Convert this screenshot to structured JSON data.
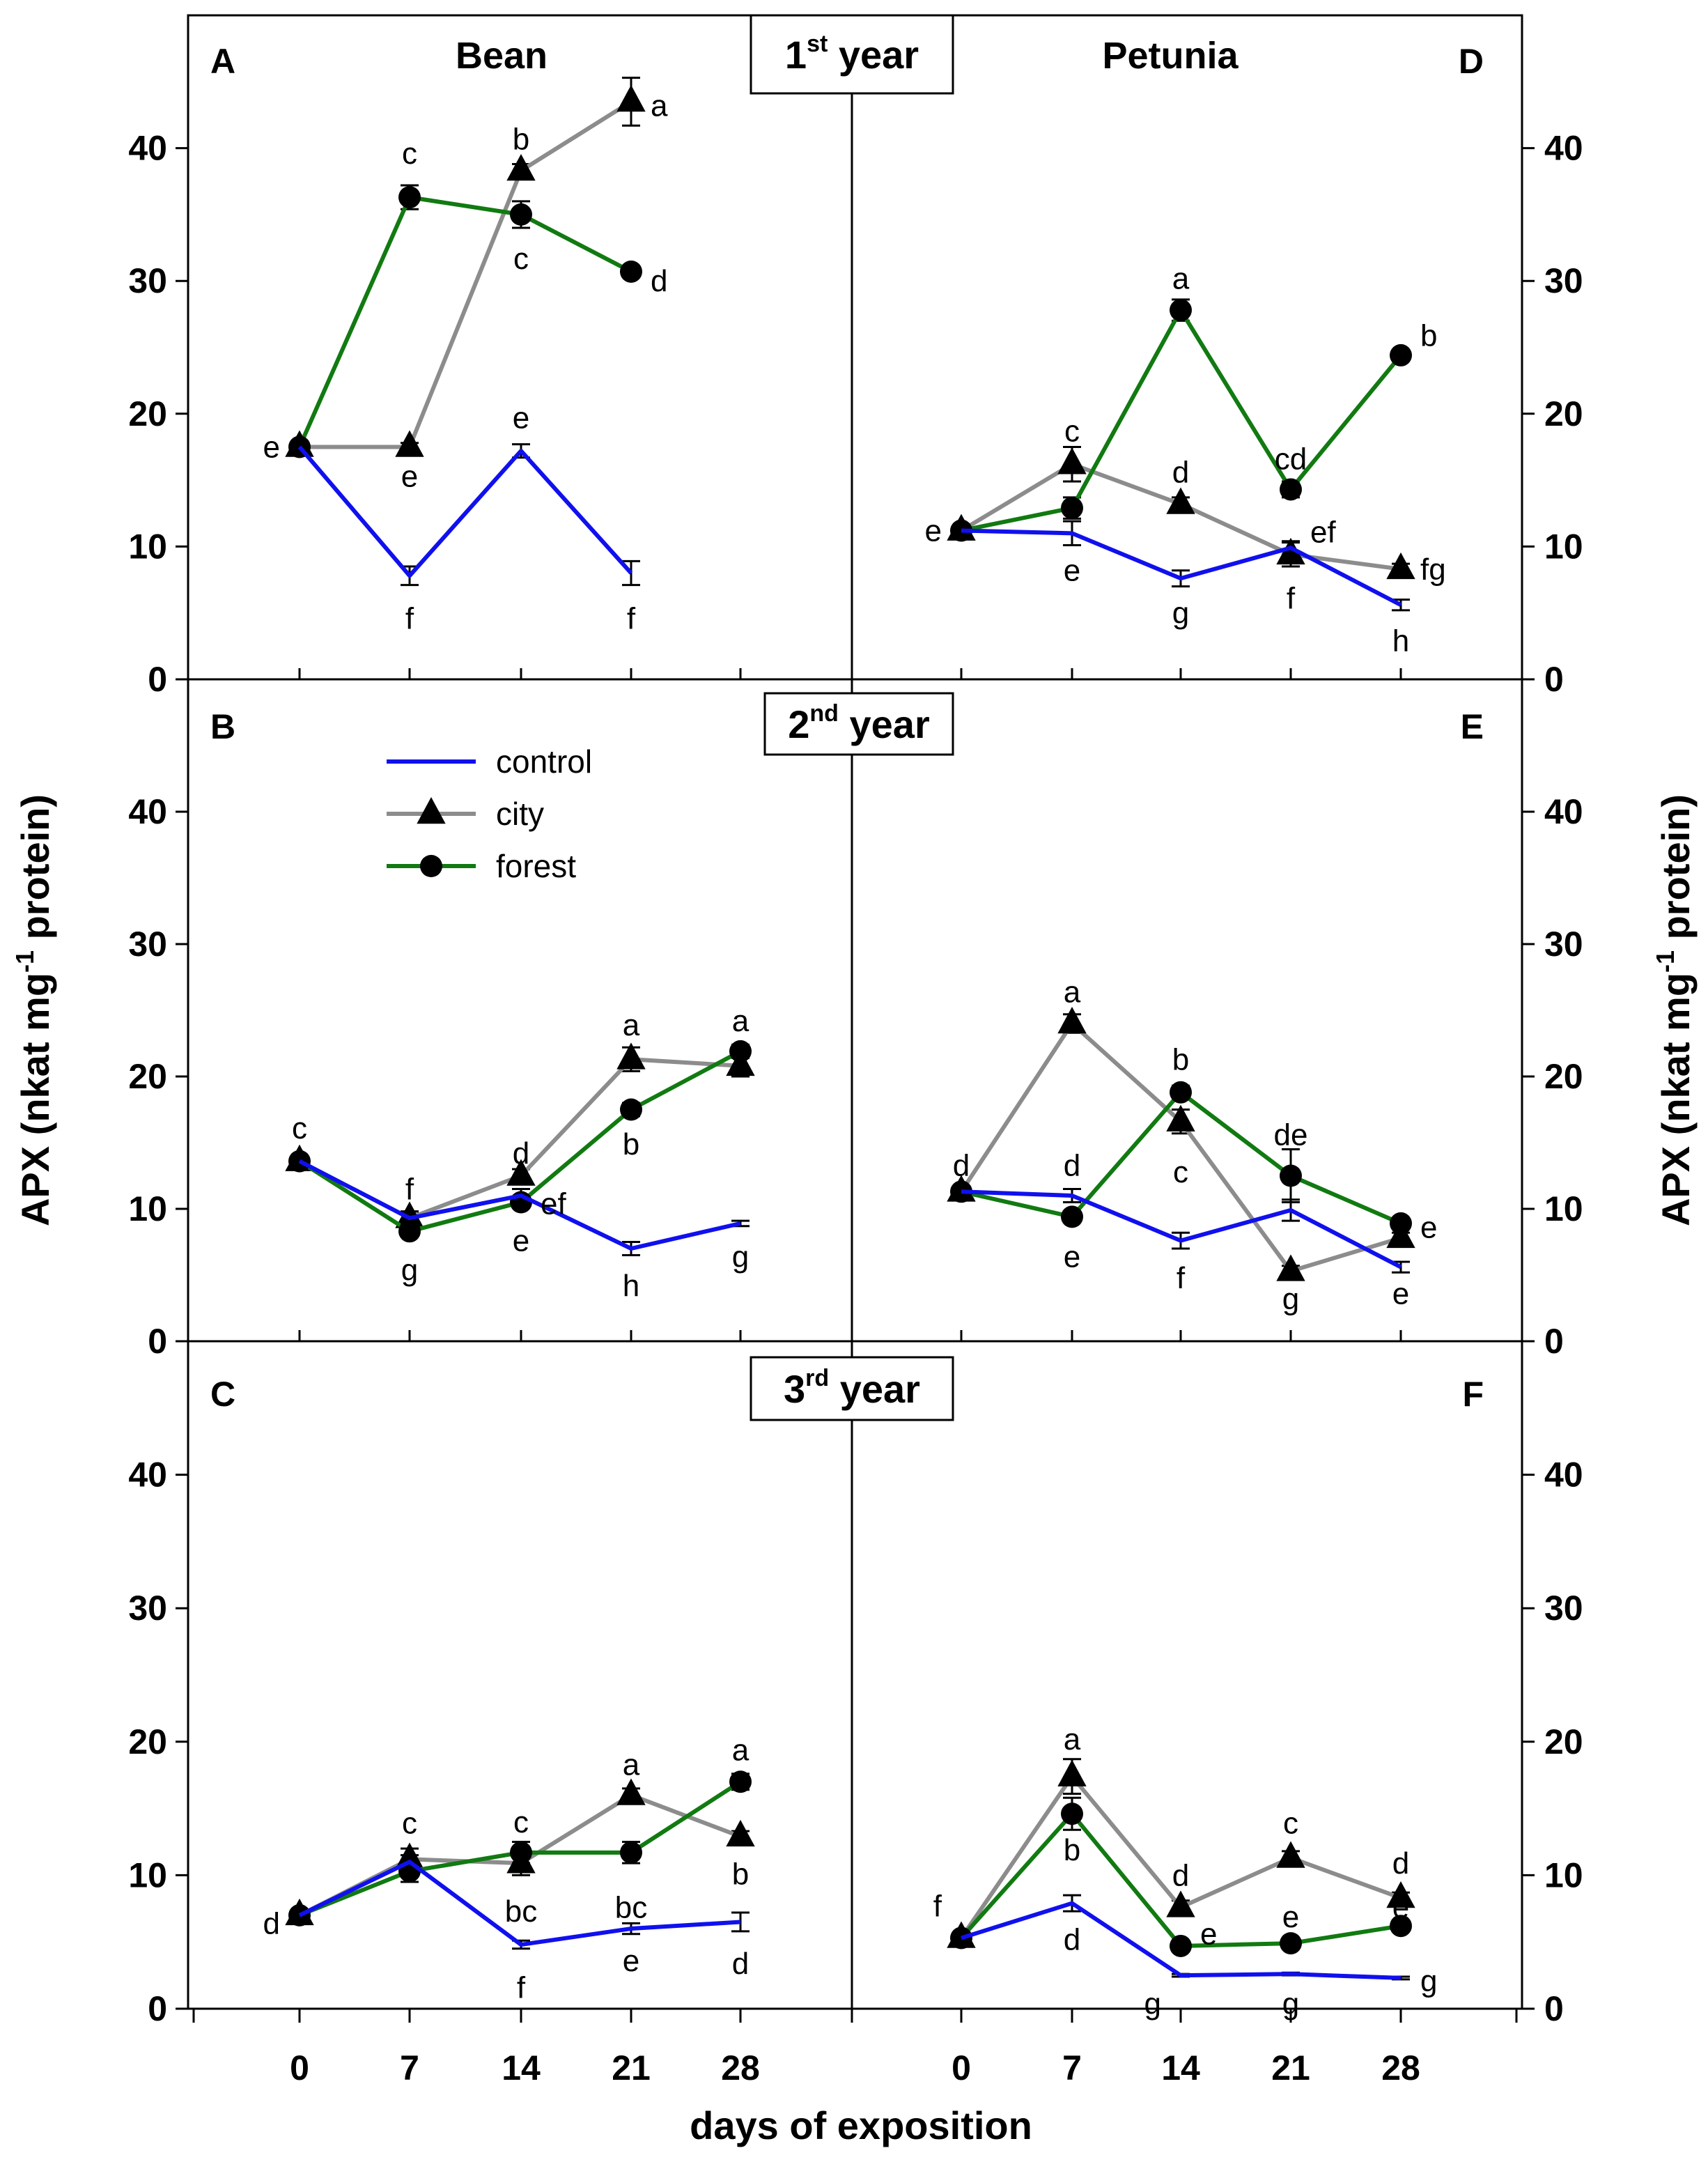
{
  "chart_data": {
    "type": "line",
    "xlabel": "days of exposition",
    "ylabel_left": {
      "prefix": "APX (nkat mg",
      "sup": "-1",
      "suffix": " protein)"
    },
    "ylabel_right": {
      "prefix": "APX (nkat mg",
      "sup": "-1",
      "suffix": " protein)"
    },
    "x": [
      0,
      7,
      14,
      21,
      28
    ],
    "x_tick_labels": [
      "0",
      "7",
      "14",
      "21",
      "28"
    ],
    "ylim": [
      0,
      50
    ],
    "y_tick_labels": [
      "0",
      "10",
      "20",
      "30",
      "40"
    ],
    "species": [
      "Bean",
      "Petunia"
    ],
    "years": [
      {
        "num": "1",
        "sup": "st",
        "word": "year"
      },
      {
        "num": "2",
        "sup": "nd",
        "word": "year"
      },
      {
        "num": "3",
        "sup": "rd",
        "word": "year"
      }
    ],
    "series_styles": {
      "control": {
        "color": "#1010ee",
        "marker": "none"
      },
      "city": {
        "color": "#8c8c8c",
        "marker": "triangle"
      },
      "forest": {
        "color": "#117a11",
        "marker": "circle"
      }
    },
    "legend": [
      {
        "name": "control",
        "label": "control"
      },
      {
        "name": "city",
        "label": "city"
      },
      {
        "name": "forest",
        "label": "forest"
      }
    ],
    "panels": [
      {
        "letter": "A",
        "species": 0,
        "year": 0,
        "series": [
          {
            "name": "control",
            "values": [
              17.5,
              7.8,
              17.2,
              8.0
            ],
            "err": [
              0.3,
              0.7,
              0.5,
              0.9
            ]
          },
          {
            "name": "city",
            "values": [
              17.5,
              17.5,
              38.3,
              43.5
            ],
            "err": [
              0.3,
              0.3,
              0.5,
              1.8
            ]
          },
          {
            "name": "forest",
            "values": [
              17.5,
              36.3,
              35.0,
              30.7
            ],
            "err": [
              0.3,
              0.9,
              1.0,
              0.4
            ]
          }
        ],
        "labels": [
          {
            "text": "e",
            "x": 0,
            "y": 17.5,
            "pos": "left"
          },
          {
            "text": "e",
            "x": 7,
            "y": 15.3,
            "pos": "at"
          },
          {
            "text": "f",
            "x": 7,
            "y": 4.6,
            "pos": "at"
          },
          {
            "text": "f",
            "x": 21,
            "y": 4.6,
            "pos": "at"
          },
          {
            "text": "e",
            "x": 14,
            "y": 19.7,
            "pos": "at"
          },
          {
            "text": "c",
            "x": 7,
            "y": 39.6,
            "pos": "at"
          },
          {
            "text": "b",
            "x": 14,
            "y": 40.7,
            "pos": "at"
          },
          {
            "text": "c",
            "x": 14,
            "y": 31.7,
            "pos": "at"
          },
          {
            "text": "a",
            "x": 21,
            "y": 43.2,
            "pos": "right"
          },
          {
            "text": "d",
            "x": 21,
            "y": 30.0,
            "pos": "right"
          }
        ]
      },
      {
        "letter": "B",
        "species": 0,
        "year": 1,
        "series": [
          {
            "name": "control",
            "values": [
              13.6,
              9.3,
              11.0,
              7.0,
              8.9
            ],
            "err": [
              0.3,
              0.5,
              0.5,
              0.5,
              0.2
            ]
          },
          {
            "name": "city",
            "values": [
              13.6,
              9.3,
              12.5,
              21.3,
              20.8
            ],
            "err": [
              0.3,
              0.5,
              0.5,
              0.9,
              0.8
            ]
          },
          {
            "name": "forest",
            "values": [
              13.6,
              8.3,
              10.5,
              17.5,
              21.9
            ],
            "err": [
              0.3,
              0.4,
              0.4,
              0.5,
              0.5
            ]
          }
        ],
        "labels": [
          {
            "text": "c",
            "x": 0,
            "y": 16.1,
            "pos": "at"
          },
          {
            "text": "f",
            "x": 7,
            "y": 11.5,
            "pos": "at"
          },
          {
            "text": "g",
            "x": 7,
            "y": 5.4,
            "pos": "at"
          },
          {
            "text": "d",
            "x": 14,
            "y": 14.2,
            "pos": "at"
          },
          {
            "text": "e",
            "x": 14,
            "y": 7.6,
            "pos": "at"
          },
          {
            "text": "ef",
            "x": 14,
            "y": 10.4,
            "pos": "right"
          },
          {
            "text": "a",
            "x": 21,
            "y": 23.9,
            "pos": "at"
          },
          {
            "text": "b",
            "x": 21,
            "y": 14.9,
            "pos": "at"
          },
          {
            "text": "h",
            "x": 21,
            "y": 4.2,
            "pos": "at"
          },
          {
            "text": "a",
            "x": 28,
            "y": 24.2,
            "pos": "at"
          },
          {
            "text": "g",
            "x": 28,
            "y": 6.4,
            "pos": "at"
          }
        ]
      },
      {
        "letter": "C",
        "species": 0,
        "year": 2,
        "series": [
          {
            "name": "control",
            "values": [
              7.0,
              11.0,
              4.8,
              6.0,
              6.5
            ],
            "err": [
              0.3,
              0.5,
              0.3,
              0.4,
              0.7
            ]
          },
          {
            "name": "city",
            "values": [
              7.0,
              11.2,
              10.9,
              16.0,
              12.9
            ],
            "err": [
              0.3,
              0.8,
              0.9,
              0.5,
              0.4
            ]
          },
          {
            "name": "forest",
            "values": [
              7.0,
              10.3,
              11.7,
              11.7,
              17.0
            ],
            "err": [
              0.3,
              0.8,
              0.8,
              0.8,
              0.6
            ]
          }
        ],
        "labels": [
          {
            "text": "d",
            "x": 0,
            "y": 6.4,
            "pos": "left"
          },
          {
            "text": "c",
            "x": 7,
            "y": 13.9,
            "pos": "at"
          },
          {
            "text": "c",
            "x": 14,
            "y": 14.0,
            "pos": "at"
          },
          {
            "text": "bc",
            "x": 14,
            "y": 7.3,
            "pos": "at"
          },
          {
            "text": "f",
            "x": 14,
            "y": 1.6,
            "pos": "at"
          },
          {
            "text": "a",
            "x": 21,
            "y": 18.3,
            "pos": "at"
          },
          {
            "text": "bc",
            "x": 21,
            "y": 7.6,
            "pos": "at"
          },
          {
            "text": "e",
            "x": 21,
            "y": 3.6,
            "pos": "at"
          },
          {
            "text": "a",
            "x": 28,
            "y": 19.4,
            "pos": "at"
          },
          {
            "text": "b",
            "x": 28,
            "y": 10.1,
            "pos": "at"
          },
          {
            "text": "d",
            "x": 28,
            "y": 3.4,
            "pos": "at"
          }
        ]
      },
      {
        "letter": "D",
        "species": 1,
        "year": 0,
        "series": [
          {
            "name": "control",
            "values": [
              11.2,
              11.0,
              7.6,
              9.9,
              5.6
            ],
            "err": [
              0.3,
              0.9,
              0.6,
              0.5,
              0.4
            ]
          },
          {
            "name": "city",
            "values": [
              11.2,
              16.2,
              13.2,
              9.4,
              8.3
            ],
            "err": [
              0.3,
              1.3,
              0.5,
              0.9,
              0.4
            ]
          },
          {
            "name": "forest",
            "values": [
              11.2,
              12.9,
              27.8,
              14.3,
              24.4
            ],
            "err": [
              0.3,
              0.8,
              0.8,
              0.6,
              0.4
            ]
          }
        ],
        "labels": [
          {
            "text": "e",
            "x": 0,
            "y": 11.2,
            "pos": "left"
          },
          {
            "text": "c",
            "x": 7,
            "y": 18.7,
            "pos": "at"
          },
          {
            "text": "e",
            "x": 7,
            "y": 8.2,
            "pos": "at"
          },
          {
            "text": "a",
            "x": 14,
            "y": 30.2,
            "pos": "at"
          },
          {
            "text": "d",
            "x": 14,
            "y": 15.6,
            "pos": "at"
          },
          {
            "text": "g",
            "x": 14,
            "y": 5.0,
            "pos": "at"
          },
          {
            "text": "cd",
            "x": 21,
            "y": 16.6,
            "pos": "at"
          },
          {
            "text": "ef",
            "x": 21,
            "y": 11.1,
            "pos": "right"
          },
          {
            "text": "f",
            "x": 21,
            "y": 6.1,
            "pos": "at"
          },
          {
            "text": "b",
            "x": 28,
            "y": 25.9,
            "pos": "right"
          },
          {
            "text": "fg",
            "x": 28,
            "y": 8.3,
            "pos": "right"
          },
          {
            "text": "h",
            "x": 28,
            "y": 2.9,
            "pos": "at"
          }
        ]
      },
      {
        "letter": "E",
        "species": 1,
        "year": 1,
        "series": [
          {
            "name": "control",
            "values": [
              11.3,
              11.0,
              7.6,
              9.9,
              5.6
            ],
            "err": [
              0.3,
              0.5,
              0.6,
              0.8,
              0.4
            ]
          },
          {
            "name": "city",
            "values": [
              11.3,
              24.0,
              16.6,
              5.3,
              7.8
            ],
            "err": [
              0.3,
              0.7,
              0.9,
              0.4,
              0.4
            ]
          },
          {
            "name": "forest",
            "values": [
              11.3,
              9.4,
              18.8,
              12.5,
              8.9
            ],
            "err": [
              0.3,
              0.4,
              0.5,
              2.0,
              0.4
            ]
          }
        ],
        "labels": [
          {
            "text": "d",
            "x": 0,
            "y": 13.3,
            "pos": "at"
          },
          {
            "text": "a",
            "x": 7,
            "y": 26.4,
            "pos": "at"
          },
          {
            "text": "d",
            "x": 7,
            "y": 13.3,
            "pos": "at"
          },
          {
            "text": "e",
            "x": 7,
            "y": 6.4,
            "pos": "at"
          },
          {
            "text": "b",
            "x": 14,
            "y": 21.3,
            "pos": "at"
          },
          {
            "text": "c",
            "x": 14,
            "y": 12.8,
            "pos": "at"
          },
          {
            "text": "f",
            "x": 14,
            "y": 4.8,
            "pos": "at"
          },
          {
            "text": "de",
            "x": 21,
            "y": 15.6,
            "pos": "at"
          },
          {
            "text": "g",
            "x": 21,
            "y": 3.2,
            "pos": "at"
          },
          {
            "text": "e",
            "x": 28,
            "y": 8.6,
            "pos": "right"
          },
          {
            "text": "e",
            "x": 28,
            "y": 3.6,
            "pos": "at"
          }
        ]
      },
      {
        "letter": "F",
        "species": 1,
        "year": 2,
        "series": [
          {
            "name": "control",
            "values": [
              5.3,
              7.9,
              2.5,
              2.6,
              2.3
            ],
            "err": [
              0.3,
              0.6,
              0.1,
              0.1,
              0.1
            ]
          },
          {
            "name": "city",
            "values": [
              5.3,
              17.4,
              7.6,
              11.3,
              8.3
            ],
            "err": [
              0.3,
              1.3,
              0.5,
              0.5,
              0.4
            ]
          },
          {
            "name": "forest",
            "values": [
              5.3,
              14.6,
              4.7,
              4.9,
              6.2
            ],
            "err": [
              0.3,
              1.2,
              0.3,
              0.3,
              0.4
            ]
          }
        ],
        "labels": [
          {
            "text": "f",
            "x": 0,
            "y": 7.7,
            "pos": "left"
          },
          {
            "text": "a",
            "x": 7,
            "y": 20.2,
            "pos": "at"
          },
          {
            "text": "b",
            "x": 7,
            "y": 11.9,
            "pos": "at"
          },
          {
            "text": "d",
            "x": 7,
            "y": 5.2,
            "pos": "at"
          },
          {
            "text": "d",
            "x": 14,
            "y": 10.0,
            "pos": "at"
          },
          {
            "text": "e",
            "x": 14,
            "y": 5.6,
            "pos": "right"
          },
          {
            "text": "g",
            "x": 14,
            "y": 0.4,
            "pos": "left"
          },
          {
            "text": "c",
            "x": 21,
            "y": 13.9,
            "pos": "at"
          },
          {
            "text": "e",
            "x": 21,
            "y": 6.9,
            "pos": "at"
          },
          {
            "text": "g",
            "x": 21,
            "y": 0.4,
            "pos": "at"
          },
          {
            "text": "d",
            "x": 28,
            "y": 10.9,
            "pos": "at"
          },
          {
            "text": "e",
            "x": 28,
            "y": 7.6,
            "pos": "at"
          },
          {
            "text": "g",
            "x": 28,
            "y": 2.1,
            "pos": "right"
          }
        ]
      }
    ]
  }
}
